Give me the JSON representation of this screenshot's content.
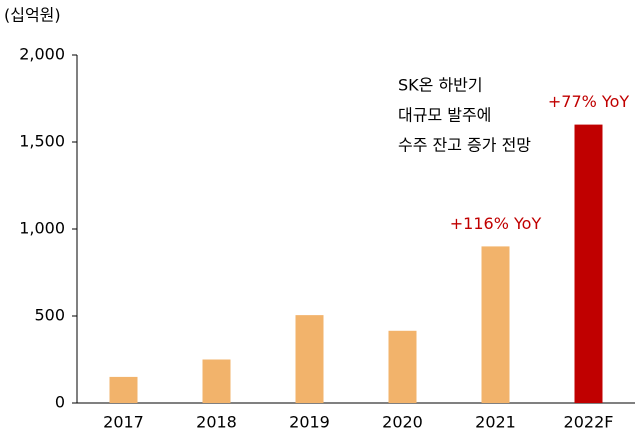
{
  "chart_data": {
    "type": "bar",
    "unit_label": "(십억원)",
    "categories": [
      "2017",
      "2018",
      "2019",
      "2020",
      "2021",
      "2022F"
    ],
    "values": [
      150,
      250,
      505,
      415,
      900,
      1600
    ],
    "colors": [
      "#f2b36b",
      "#f2b36b",
      "#f2b36b",
      "#f2b36b",
      "#f2b36b",
      "#c00000"
    ],
    "ylim": [
      0,
      2000
    ],
    "yticks": [
      0,
      500,
      {
        "value": 1000,
        "label": "1,000"
      },
      {
        "value": 1500,
        "label": "1,500"
      },
      {
        "value": 2000,
        "label": "2,000"
      }
    ],
    "annotations": [
      {
        "text": "+116% YoY",
        "category": "2021"
      },
      {
        "text": "+77% YoY",
        "category": "2022F"
      }
    ],
    "note_lines": [
      "SK온 하반기",
      "대규모 발주에",
      "수주 잔고 증가 전망"
    ]
  }
}
